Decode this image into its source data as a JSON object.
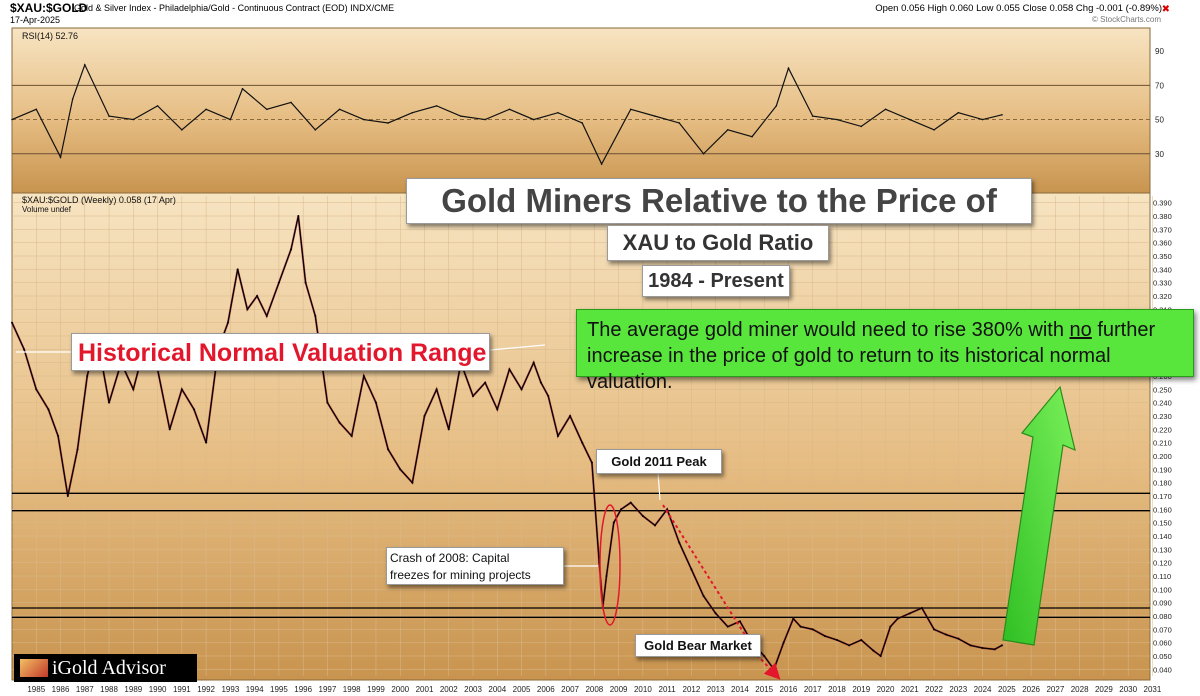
{
  "header": {
    "ticker": "$XAU:$GOLD",
    "name": "Gold & Silver Index - Philadelphia/Gold - Continuous Contract (EOD) INDX/CME",
    "date": "17-Apr-2025",
    "ohlc": "Open 0.056  High 0.060  Low 0.055  Close 0.058  Chg -0.001 (-0.89%)",
    "trademark": "© StockCharts.com"
  },
  "labels": {
    "title": "Gold Miners Relative to the Price of Gold",
    "subtitle1": "XAU to Gold Ratio",
    "subtitle2": "1984 - Present",
    "normal_range": "Historical Normal Valuation Range",
    "note_line1": "The average gold miner would need to rise 380% with",
    "note_no": "no",
    "note_line1_end": "further",
    "note_line2": "increase in the price of gold to return to its historical normal valuation.",
    "peak": "Gold 2011 Peak",
    "crash_line1": "Crash of 2008: Capital",
    "crash_line2": "freezes for mining projects",
    "bear": "Gold Bear Market",
    "logo": "iGold Advisor"
  },
  "colors": {
    "bg_top": "#f7e4c2",
    "bg_bottom": "#c8944f",
    "price_line": "#000000",
    "price_accent": "#c0182a",
    "arrow_green": "#52e83a",
    "annotation_red": "#e3172c"
  },
  "chart_data": [
    {
      "type": "line",
      "title": "RSI(14) 52.76",
      "ylim": [
        10,
        100
      ],
      "y_ticks": [
        30,
        50,
        70,
        90
      ],
      "reference_lines": [
        30,
        50,
        70
      ],
      "x": [
        1984.5,
        1985.5,
        1986.5,
        1987.0,
        1987.5,
        1988.5,
        1989.5,
        1990.5,
        1991.5,
        1992.5,
        1993.5,
        1994.0,
        1995.0,
        1996.0,
        1997.0,
        1998.0,
        1999.0,
        2000.0,
        2001.0,
        2002.0,
        2003.0,
        2004.0,
        2005.0,
        2006.0,
        2007.0,
        2008.0,
        2008.8,
        2010.0,
        2011.0,
        2012.0,
        2013.0,
        2014.0,
        2015.0,
        2016.0,
        2016.5,
        2017.5,
        2018.5,
        2019.5,
        2020.5,
        2021.5,
        2022.5,
        2023.5,
        2024.5,
        2025.3
      ],
      "values": [
        50,
        56,
        28,
        62,
        82,
        52,
        50,
        58,
        44,
        56,
        50,
        68,
        56,
        60,
        44,
        56,
        50,
        48,
        54,
        58,
        52,
        50,
        56,
        50,
        54,
        48,
        24,
        56,
        52,
        48,
        30,
        44,
        40,
        58,
        80,
        52,
        50,
        46,
        56,
        50,
        44,
        54,
        50,
        52.76
      ]
    },
    {
      "type": "line",
      "title": "$XAU:$GOLD (Weekly) 0.058 (17 Apr)",
      "legend": [
        "$XAU:$GOLD (Weekly) 0.058 (17 Apr)",
        "Volume undef"
      ],
      "ylim": [
        0.035,
        0.395
      ],
      "x_ticks": [
        "1985",
        "1986",
        "1987",
        "1988",
        "1989",
        "1990",
        "1991",
        "1992",
        "1993",
        "1994",
        "1995",
        "1996",
        "1997",
        "1998",
        "1999",
        "2000",
        "2001",
        "2002",
        "2003",
        "2004",
        "2005",
        "2006",
        "2007",
        "2008",
        "2009",
        "2010",
        "2011",
        "2012",
        "2013",
        "2014",
        "2015",
        "2016",
        "2017",
        "2018",
        "2019",
        "2020",
        "2021",
        "2022",
        "2023",
        "2024",
        "2025",
        "2026",
        "2027",
        "2028",
        "2029",
        "2030",
        "2031"
      ],
      "y_ticks": [
        0.04,
        0.05,
        0.06,
        0.07,
        0.08,
        0.09,
        0.1,
        0.11,
        0.12,
        0.13,
        0.14,
        0.15,
        0.16,
        0.17,
        0.18,
        0.19,
        0.2,
        0.21,
        0.22,
        0.23,
        0.24,
        0.25,
        0.26,
        0.27,
        0.28,
        0.29,
        0.3,
        0.31,
        0.32,
        0.33,
        0.34,
        0.35,
        0.36,
        0.37,
        0.38,
        0.39
      ],
      "horizontal_lines": [
        0.172,
        0.159,
        0.086,
        0.079
      ],
      "x": [
        1984.5,
        1985.0,
        1985.5,
        1986.0,
        1986.4,
        1986.8,
        1987.2,
        1987.6,
        1988.0,
        1988.5,
        1989.0,
        1989.5,
        1990.0,
        1990.5,
        1991.0,
        1991.5,
        1992.0,
        1992.5,
        1993.0,
        1993.4,
        1993.8,
        1994.2,
        1994.6,
        1995.0,
        1995.5,
        1996.0,
        1996.3,
        1996.6,
        1997.0,
        1997.5,
        1998.0,
        1998.5,
        1999.0,
        1999.5,
        2000.0,
        2000.5,
        2001.0,
        2001.5,
        2002.0,
        2002.5,
        2003.0,
        2003.5,
        2004.0,
        2004.5,
        2005.0,
        2005.5,
        2006.0,
        2006.3,
        2006.6,
        2007.0,
        2007.5,
        2008.0,
        2008.4,
        2008.7,
        2008.85,
        2009.0,
        2009.3,
        2009.6,
        2010.0,
        2010.5,
        2011.0,
        2011.5,
        2012.0,
        2012.5,
        2013.0,
        2013.5,
        2014.0,
        2014.5,
        2015.0,
        2015.5,
        2015.9,
        2016.3,
        2016.7,
        2017.0,
        2017.5,
        2018.0,
        2018.5,
        2019.0,
        2019.5,
        2020.0,
        2020.3,
        2020.7,
        2021.0,
        2021.5,
        2022.0,
        2022.5,
        2023.0,
        2023.5,
        2024.0,
        2024.5,
        2025.0,
        2025.3
      ],
      "values": [
        0.3,
        0.28,
        0.25,
        0.235,
        0.215,
        0.17,
        0.205,
        0.26,
        0.29,
        0.24,
        0.27,
        0.25,
        0.285,
        0.265,
        0.22,
        0.25,
        0.235,
        0.21,
        0.28,
        0.3,
        0.34,
        0.31,
        0.32,
        0.305,
        0.33,
        0.355,
        0.38,
        0.33,
        0.305,
        0.24,
        0.225,
        0.215,
        0.26,
        0.24,
        0.205,
        0.19,
        0.18,
        0.23,
        0.25,
        0.22,
        0.27,
        0.245,
        0.255,
        0.235,
        0.265,
        0.25,
        0.27,
        0.255,
        0.245,
        0.215,
        0.23,
        0.21,
        0.195,
        0.12,
        0.087,
        0.11,
        0.15,
        0.16,
        0.165,
        0.155,
        0.148,
        0.16,
        0.135,
        0.115,
        0.095,
        0.082,
        0.072,
        0.076,
        0.06,
        0.05,
        0.04,
        0.06,
        0.078,
        0.072,
        0.07,
        0.065,
        0.062,
        0.058,
        0.062,
        0.054,
        0.05,
        0.072,
        0.078,
        0.082,
        0.086,
        0.07,
        0.066,
        0.063,
        0.058,
        0.056,
        0.055,
        0.058
      ]
    }
  ]
}
